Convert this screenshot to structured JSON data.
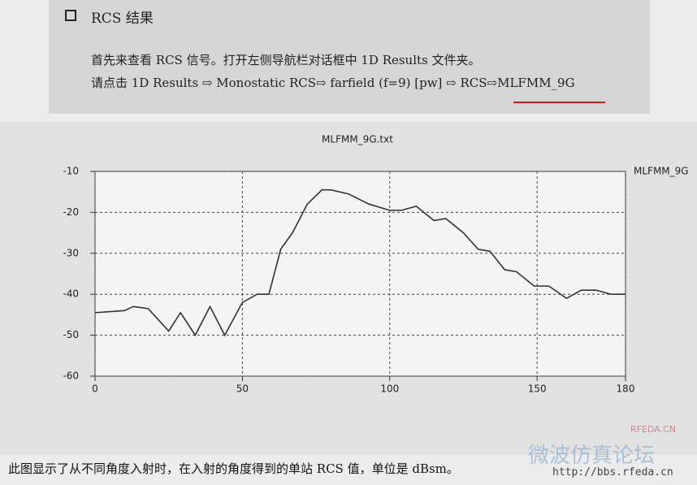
{
  "heading": "RCS 结果",
  "lines": [
    "首先来查看 RCS 信号。打开左侧导航栏对话框中 1D Results 文件夹。",
    "请点击 1D Results ⇨ Monostatic RCS⇨ farfield (f=9) [pw] ⇨ RCS⇨MLFMM_9G"
  ],
  "chart_data": {
    "type": "line",
    "title": "MLFMM_9G.txt",
    "x": [
      0,
      10,
      13,
      18,
      25,
      29,
      34,
      39,
      44,
      50,
      55,
      59,
      63,
      67,
      72,
      77,
      80,
      86,
      93,
      100,
      104,
      109,
      115,
      119,
      125,
      130,
      134,
      139,
      143,
      149,
      154,
      160,
      165,
      170,
      175,
      180
    ],
    "series": [
      {
        "name": "MLFMM_9G",
        "color": "#333333",
        "values": [
          -44.5,
          -44,
          -43,
          -43.5,
          -49,
          -44.5,
          -50,
          -43,
          -50,
          -42,
          -40,
          -40,
          -29,
          -25,
          -18,
          -14.5,
          -14.5,
          -15.5,
          -18,
          -19.5,
          -19.5,
          -18.5,
          -22,
          -21.5,
          -25,
          -29,
          -29.5,
          -34,
          -34.5,
          -38,
          -38,
          -41,
          -39,
          -39,
          -40,
          -40
        ]
      }
    ],
    "xlim": [
      0,
      180
    ],
    "xticks": [
      0,
      50,
      100,
      150,
      180
    ],
    "ylim": [
      -60,
      -10
    ],
    "yticks": [
      -10,
      -20,
      -30,
      -40,
      -50,
      -60
    ],
    "grid": true
  },
  "caption": "此图显示了从不同角度入射时，在入射的角度得到的单站 RCS 值，单位是 dBsm。",
  "watermark": {
    "site": "RFEDA.CN",
    "url": "http://bbs.rfeda.cn",
    "forum": "微波仿真论坛"
  }
}
